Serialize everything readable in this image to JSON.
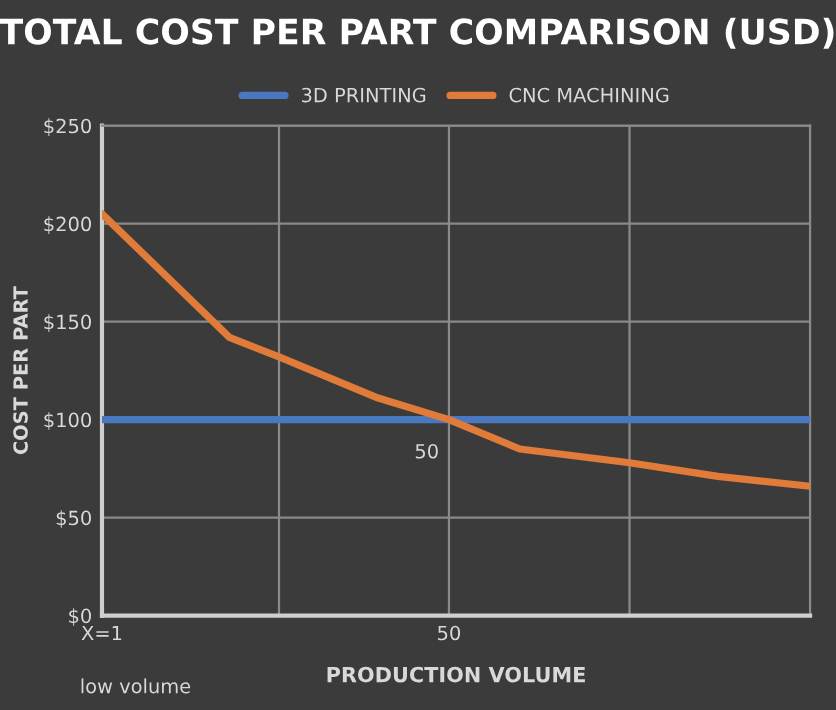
{
  "chart_data": {
    "type": "line",
    "title": "TOTAL COST PER PART COMPARISON (USD)",
    "xlabel": "PRODUCTION VOLUME",
    "ylabel": "COST PER PART",
    "series": [
      {
        "name": "3D PRINTING",
        "color": "#4a78c0",
        "x": [
          1,
          101
        ],
        "values": [
          100,
          100
        ]
      },
      {
        "name": "CNC MACHINING",
        "color": "#e07b39",
        "x": [
          1,
          19,
          26,
          40,
          50,
          60,
          75.5,
          88,
          101
        ],
        "values": [
          205,
          142,
          132,
          111,
          100,
          85,
          78,
          71,
          66
        ]
      }
    ],
    "xlim": [
      1,
      101
    ],
    "xticks": [
      {
        "value": 1,
        "label": "X=1"
      },
      {
        "value": 26,
        "label": null
      },
      {
        "value": 50,
        "label": "50"
      },
      {
        "value": 75.5,
        "label": null
      },
      {
        "value": 101,
        "label": null
      }
    ],
    "ylim": [
      0,
      250
    ],
    "yticks": [
      {
        "value": 0,
        "label": "$0"
      },
      {
        "value": 50,
        "label": "$50"
      },
      {
        "value": 100,
        "label": "$100"
      },
      {
        "value": 150,
        "label": "$150"
      },
      {
        "value": 200,
        "label": "$200"
      },
      {
        "value": 250,
        "label": "$250"
      }
    ],
    "annotations": [
      {
        "text": "50",
        "x": 50,
        "y": 100
      },
      "low volume"
    ],
    "grid": true,
    "legend": "top",
    "marker": "none",
    "line_style": "solid"
  }
}
